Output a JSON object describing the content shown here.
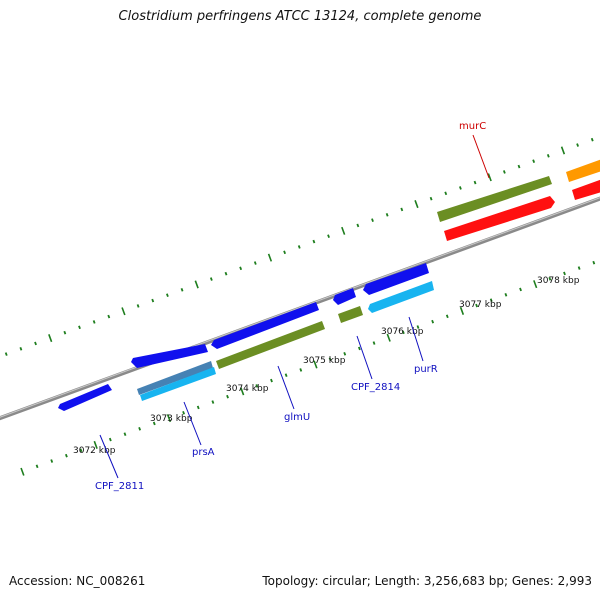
{
  "title": "Clostridium perfringens ATCC 13124, complete genome",
  "footer": {
    "accession": "Accession: NC_008261",
    "summary": "Topology: circular; Length: 3,256,683 bp; Genes: 2,993"
  },
  "colors": {
    "backbone": "#8a8a8a",
    "tick": "#1e7e1e",
    "blue_gene": "#1010ee",
    "olive_gene": "#6b8e23",
    "cyan_gene": "#18b4f0",
    "red_gene": "#ff1010",
    "orange_gene": "#ff9900",
    "steel_gene": "#4682b4",
    "label_blue": "#1010c0",
    "label_red": "#cc0000"
  },
  "ticks": [
    {
      "label": "3072 kbp"
    },
    {
      "label": "3073 kbp"
    },
    {
      "label": "3074 kbp"
    },
    {
      "label": "3075 kbp"
    },
    {
      "label": "3076 kbp"
    },
    {
      "label": "3077 kbp"
    },
    {
      "label": "3078 kbp"
    }
  ],
  "gene_labels": [
    {
      "name": "CPF_2811",
      "color": "label_blue"
    },
    {
      "name": "prsA",
      "color": "label_blue"
    },
    {
      "name": "glmU",
      "color": "label_blue"
    },
    {
      "name": "CPF_2814",
      "color": "label_blue"
    },
    {
      "name": "purR",
      "color": "label_blue"
    },
    {
      "name": "murC",
      "color": "label_red"
    }
  ]
}
